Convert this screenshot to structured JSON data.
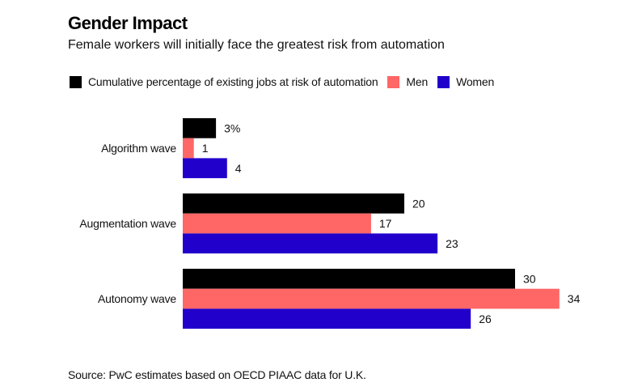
{
  "chart_data": {
    "type": "bar",
    "orientation": "horizontal",
    "title": "Gender Impact",
    "subtitle": "Female workers will initially face the greatest risk from automation",
    "categories": [
      "Algorithm wave",
      "Augmentation wave",
      "Autonomy wave"
    ],
    "series": [
      {
        "name": "Cumulative percentage of existing jobs at risk of automation",
        "color": "#000000",
        "values": [
          3,
          20,
          30
        ],
        "labels": [
          "3%",
          "20",
          "30"
        ]
      },
      {
        "name": "Men",
        "color": "#ff6666",
        "values": [
          1,
          17,
          34
        ],
        "labels": [
          "1",
          "17",
          "34"
        ]
      },
      {
        "name": "Women",
        "color": "#2200cc",
        "values": [
          4,
          23,
          26
        ],
        "labels": [
          "4",
          "23",
          "26"
        ]
      }
    ],
    "xlim": [
      0,
      34
    ],
    "grid": false,
    "legend_position": "top-left",
    "xlabel": "",
    "ylabel": "",
    "source": "Source: PwC estimates based on OECD PIAAC data for U.K."
  }
}
